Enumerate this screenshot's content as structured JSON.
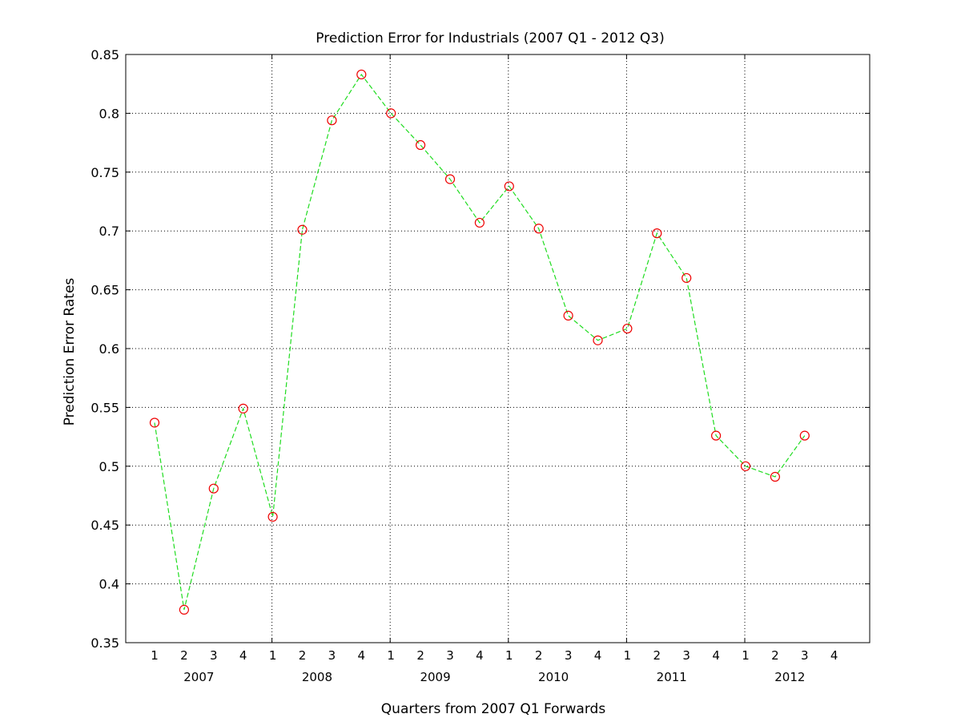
{
  "chart_data": {
    "type": "line",
    "title": "Prediction Error for Industrials (2007 Q1 - 2012 Q3)",
    "xlabel": "Quarters from 2007 Q1 Forwards",
    "ylabel": "Prediction Error Rates",
    "ylim": [
      0.35,
      0.85
    ],
    "yticks": [
      "0.35",
      "0.4",
      "0.45",
      "0.5",
      "0.55",
      "0.6",
      "0.65",
      "0.7",
      "0.75",
      "0.8",
      "0.85"
    ],
    "grid": true,
    "x_tick_labels": [
      "1",
      "2",
      "3",
      "4",
      "1",
      "2",
      "3",
      "4",
      "1",
      "2",
      "3",
      "4",
      "1",
      "2",
      "3",
      "4",
      "1",
      "2",
      "3",
      "4",
      "1",
      "2",
      "3",
      "4"
    ],
    "year_labels": [
      "2007",
      "2008",
      "2009",
      "2010",
      "2011",
      "2012"
    ],
    "categories": [
      "2007 Q1",
      "2007 Q2",
      "2007 Q3",
      "2007 Q4",
      "2008 Q1",
      "2008 Q2",
      "2008 Q3",
      "2008 Q4",
      "2009 Q1",
      "2009 Q2",
      "2009 Q3",
      "2009 Q4",
      "2010 Q1",
      "2010 Q2",
      "2010 Q3",
      "2010 Q4",
      "2011 Q1",
      "2011 Q2",
      "2011 Q3",
      "2011 Q4",
      "2012 Q1",
      "2012 Q2",
      "2012 Q3"
    ],
    "series": [
      {
        "values": [
          0.537,
          0.378,
          0.481,
          0.549,
          0.457,
          0.701,
          0.794,
          0.833,
          0.8,
          0.773,
          0.744,
          0.707,
          0.738,
          0.702,
          0.628,
          0.607,
          0.617,
          0.698,
          0.66,
          0.526,
          0.5,
          0.491,
          0.526
        ],
        "line_color": "#1fdc1f",
        "marker_color": "#ee0000",
        "line_style": "dashed",
        "marker": "circle"
      }
    ]
  }
}
